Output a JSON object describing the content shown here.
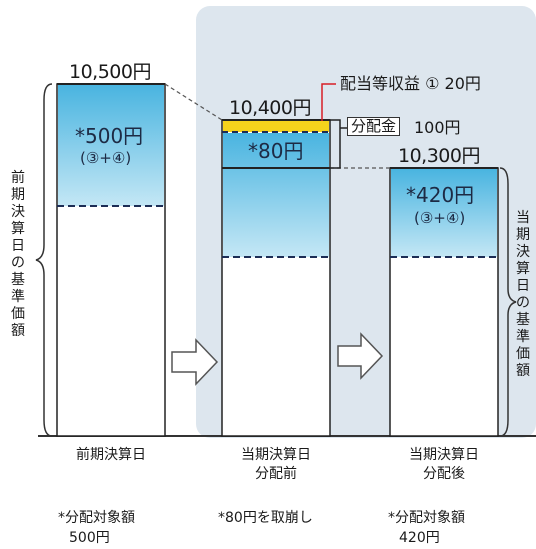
{
  "colors": {
    "panel": "#dde6ee",
    "bar_blue_top": "#49b4e0",
    "bar_blue_bottom": "#c4e7f5",
    "income_yellow": "#f5d21c",
    "leader_red": "#d81f26"
  },
  "bars": {
    "previous": {
      "value": "10,500円",
      "inner_main": "*500円",
      "inner_sub": "(③+④)"
    },
    "before": {
      "value": "10,400円",
      "inner_main": "*80円"
    },
    "after": {
      "value": "10,300円",
      "inner_main": "*420円",
      "inner_sub": "(③+④)"
    }
  },
  "callouts": {
    "income": "配当等収益 ① 20円",
    "distribution_label": "分配金",
    "distribution_value": "100円"
  },
  "side_labels": {
    "left": [
      "前",
      "期",
      "決",
      "算",
      "日",
      "の",
      "基",
      "準",
      "価",
      "額"
    ],
    "right": [
      "当",
      "期",
      "決",
      "算",
      "日",
      "の",
      "基",
      "準",
      "価",
      "額"
    ]
  },
  "x_labels": {
    "previous": [
      "前期決算日"
    ],
    "before": [
      "当期決算日",
      "分配前"
    ],
    "after": [
      "当期決算日",
      "分配後"
    ]
  },
  "notes": {
    "previous": [
      "*分配対象額",
      "500円"
    ],
    "before": [
      "*80円を取崩し"
    ],
    "after": [
      "*分配対象額",
      "420円"
    ]
  },
  "icons": [
    "arrow-right-icon",
    "arrow-right-icon"
  ]
}
